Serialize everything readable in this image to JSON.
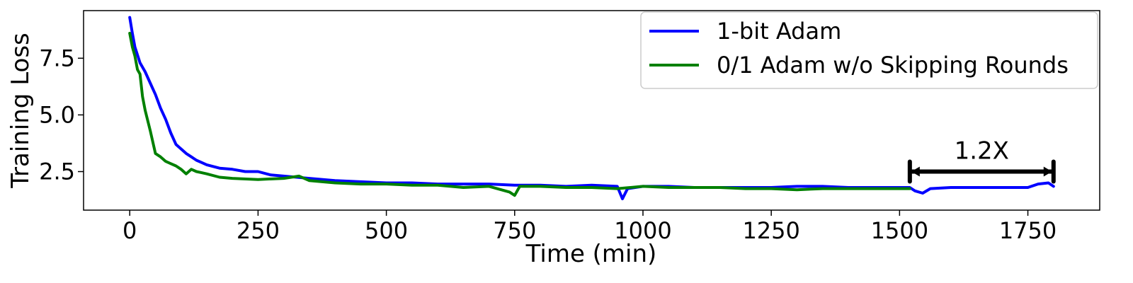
{
  "chart_data": {
    "type": "line",
    "title": "",
    "xlabel": "Time (min)",
    "ylabel": "Training Loss",
    "xlim": [
      -90,
      1890
    ],
    "ylim": [
      0.8,
      9.6
    ],
    "xticks": [
      0,
      250,
      500,
      750,
      1000,
      1250,
      1500,
      1750
    ],
    "yticks": [
      2.5,
      5.0,
      7.5
    ],
    "grid": false,
    "legend_position": "top-right",
    "series": [
      {
        "name": "1-bit Adam",
        "color": "#0000ff",
        "x": [
          0,
          5,
          10,
          20,
          30,
          40,
          50,
          60,
          70,
          80,
          90,
          100,
          110,
          120,
          130,
          140,
          150,
          175,
          200,
          225,
          250,
          275,
          300,
          350,
          400,
          450,
          500,
          550,
          600,
          650,
          700,
          750,
          800,
          850,
          900,
          950,
          960,
          970,
          1000,
          1050,
          1100,
          1150,
          1200,
          1250,
          1300,
          1350,
          1400,
          1450,
          1500,
          1520,
          1530,
          1545,
          1560,
          1600,
          1650,
          1700,
          1750,
          1770,
          1790,
          1800
        ],
        "y": [
          9.3,
          8.6,
          8.0,
          7.3,
          6.9,
          6.4,
          5.9,
          5.3,
          4.8,
          4.2,
          3.7,
          3.5,
          3.3,
          3.15,
          3.0,
          2.9,
          2.8,
          2.65,
          2.6,
          2.5,
          2.5,
          2.35,
          2.3,
          2.2,
          2.1,
          2.05,
          2.0,
          2.0,
          1.95,
          1.95,
          1.95,
          1.9,
          1.9,
          1.85,
          1.9,
          1.85,
          1.3,
          1.75,
          1.85,
          1.85,
          1.8,
          1.8,
          1.8,
          1.8,
          1.85,
          1.85,
          1.8,
          1.8,
          1.8,
          1.8,
          1.65,
          1.55,
          1.75,
          1.8,
          1.8,
          1.8,
          1.8,
          1.95,
          2.0,
          1.85
        ]
      },
      {
        "name": "0/1 Adam w/o Skipping Rounds",
        "color": "#008000",
        "x": [
          0,
          5,
          10,
          15,
          20,
          25,
          30,
          40,
          50,
          60,
          70,
          80,
          90,
          100,
          110,
          120,
          130,
          140,
          150,
          175,
          200,
          250,
          300,
          330,
          350,
          400,
          450,
          500,
          550,
          600,
          650,
          700,
          740,
          750,
          760,
          800,
          850,
          900,
          950,
          1000,
          1050,
          1100,
          1150,
          1200,
          1250,
          1300,
          1350,
          1400,
          1450,
          1500,
          1520
        ],
        "y": [
          8.6,
          8.0,
          7.6,
          7.0,
          6.8,
          5.8,
          5.2,
          4.3,
          3.3,
          3.15,
          2.95,
          2.85,
          2.75,
          2.6,
          2.4,
          2.6,
          2.5,
          2.45,
          2.4,
          2.25,
          2.2,
          2.15,
          2.2,
          2.3,
          2.1,
          2.0,
          1.95,
          1.95,
          1.9,
          1.9,
          1.8,
          1.85,
          1.6,
          1.45,
          1.85,
          1.85,
          1.8,
          1.8,
          1.75,
          1.85,
          1.8,
          1.8,
          1.8,
          1.75,
          1.75,
          1.7,
          1.75,
          1.75,
          1.75,
          1.75,
          1.75
        ]
      }
    ],
    "annotation": {
      "text": "1.2X",
      "x_start": 1520,
      "x_end": 1800,
      "y": 2.5
    }
  }
}
